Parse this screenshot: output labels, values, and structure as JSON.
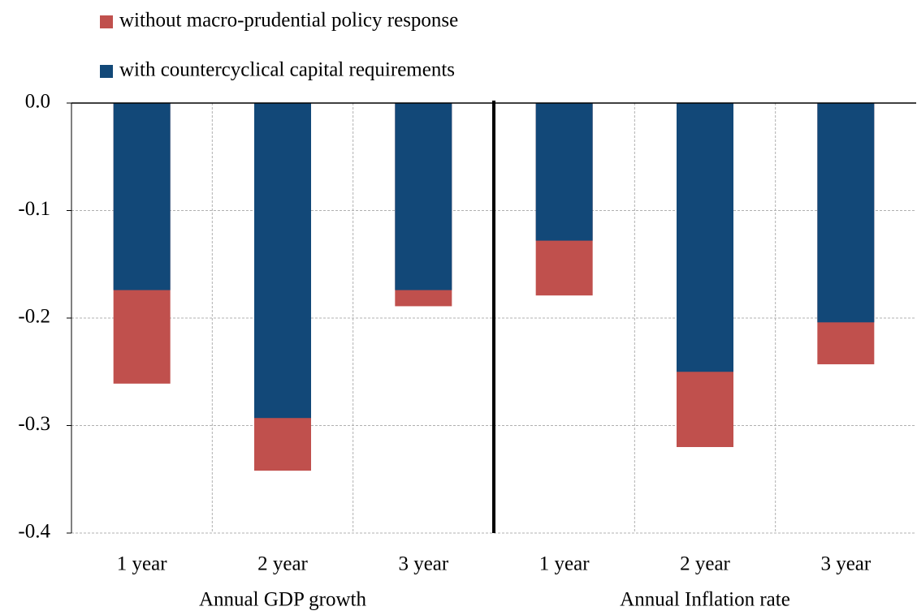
{
  "chart_data": {
    "type": "bar",
    "categories": [
      "1 year",
      "2 year",
      "3 year",
      "1 year",
      "2 year",
      "3 year"
    ],
    "groups": [
      "Annual GDP growth",
      "Annual Inflation rate"
    ],
    "series": [
      {
        "name": "without macro-prudential policy response",
        "color": "#c0504d",
        "values": [
          -0.261,
          -0.342,
          -0.189,
          -0.179,
          -0.32,
          -0.243
        ]
      },
      {
        "name": "with countercyclical capital requirements",
        "color": "#124878",
        "values": [
          -0.174,
          -0.293,
          -0.174,
          -0.128,
          -0.25,
          -0.204
        ]
      }
    ],
    "ylim": [
      -0.4,
      0
    ],
    "yticks": [
      {
        "value": 0,
        "label": "0.0"
      },
      -0.1,
      -0.2,
      -0.3,
      -0.4
    ],
    "grid": true
  }
}
